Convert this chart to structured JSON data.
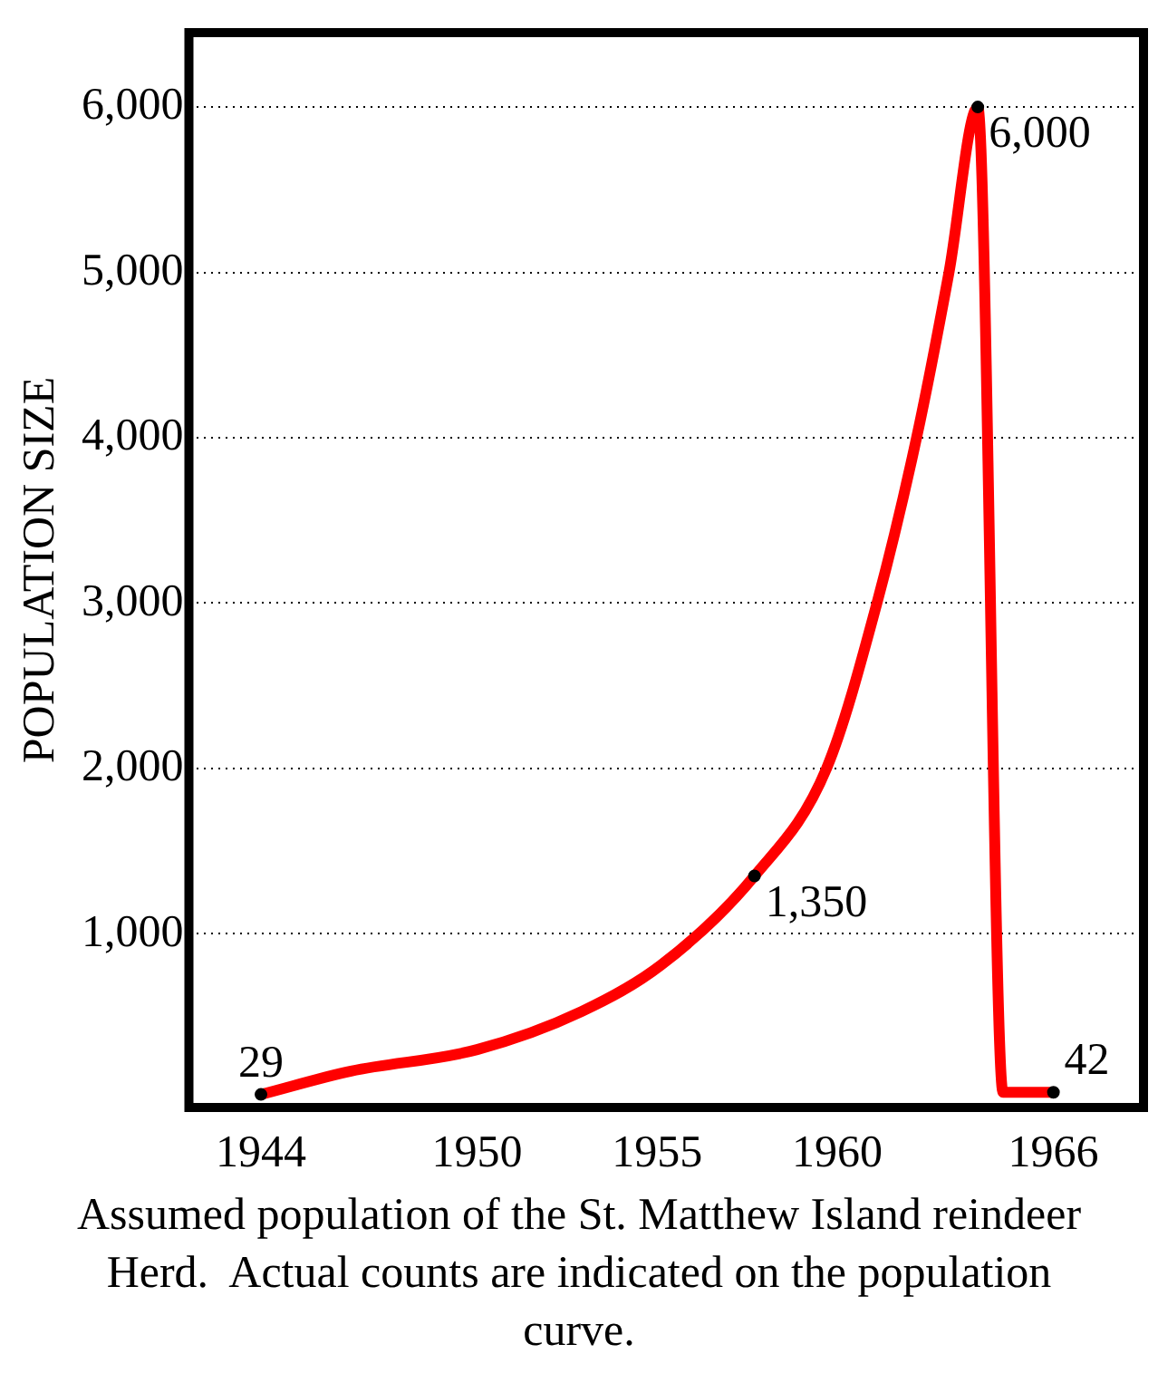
{
  "chart_data": {
    "type": "line",
    "ylabel": "POPULATION SIZE",
    "xlim": [
      1942,
      1968.5
    ],
    "xticks": [
      1944,
      1950,
      1955,
      1960,
      1966
    ],
    "ylim": [
      -50,
      6450
    ],
    "yticks": [
      {
        "value": 1000,
        "label": "1,000"
      },
      {
        "value": 2000,
        "label": "2,000"
      },
      {
        "value": 3000,
        "label": "3,000"
      },
      {
        "value": 4000,
        "label": "4,000"
      },
      {
        "value": 5000,
        "label": "5,000"
      },
      {
        "value": 6000,
        "label": "6,000"
      }
    ],
    "grid": "y",
    "legend": false,
    "series": [
      {
        "color": "#ff0000",
        "marker": "none",
        "x": [
          1944,
          1946.5,
          1950,
          1952.9,
          1955.1,
          1957.7,
          1959.7,
          1961.1,
          1962.2,
          1963.1,
          1963.9,
          1964.6,
          1966
        ],
        "values": [
          29,
          170,
          300,
          530,
          810,
          1350,
          2000,
          3000,
          4000,
          5000,
          6000,
          42,
          42
        ]
      },
      {
        "type": "scatter",
        "color": "#000000",
        "marker": "circle",
        "x": [
          1944,
          1957.7,
          1963.9,
          1966
        ],
        "values": [
          29,
          1350,
          6000,
          42
        ],
        "value_labels": [
          "29",
          "1,350",
          "6,000",
          "42"
        ]
      }
    ],
    "annotations": [
      "Assumed population of the St. Matthew Island reindeer Herd.  Actual counts are indicated on the population curve."
    ]
  }
}
